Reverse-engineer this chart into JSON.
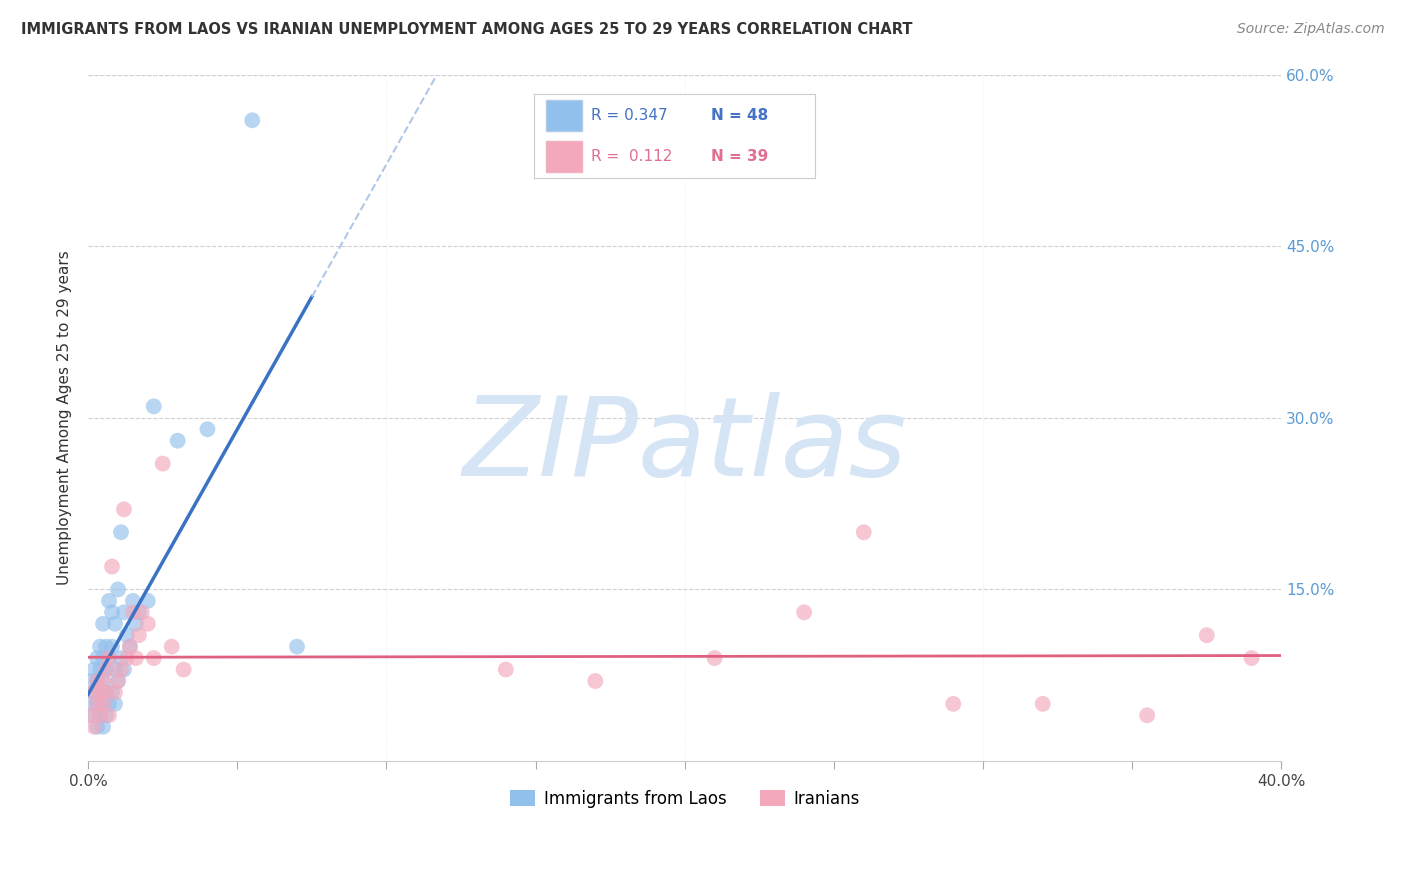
{
  "title": "IMMIGRANTS FROM LAOS VS IRANIAN UNEMPLOYMENT AMONG AGES 25 TO 29 YEARS CORRELATION CHART",
  "source": "Source: ZipAtlas.com",
  "ylabel": "Unemployment Among Ages 25 to 29 years",
  "xlim": [
    0.0,
    0.4
  ],
  "ylim": [
    0.0,
    0.6
  ],
  "xtick_positions": [
    0.0,
    0.05,
    0.1,
    0.15,
    0.2,
    0.25,
    0.3,
    0.35,
    0.4
  ],
  "xtick_labels": [
    "0.0%",
    "",
    "",
    "",
    "",
    "",
    "",
    "",
    "40.0%"
  ],
  "ytick_positions": [
    0.0,
    0.15,
    0.3,
    0.45,
    0.6
  ],
  "ytick_right_labels": [
    "",
    "15.0%",
    "30.0%",
    "45.0%",
    "60.0%"
  ],
  "blue_color": "#92c0ec",
  "pink_color": "#f4a8bc",
  "blue_line_color": "#3a72c4",
  "pink_line_color": "#e06080",
  "dashed_line_color": "#b0c8e8",
  "watermark": "ZIPatlas",
  "watermark_color": "#d5e5f5",
  "blue_scatter_x": [
    0.001,
    0.001,
    0.002,
    0.002,
    0.002,
    0.003,
    0.003,
    0.003,
    0.003,
    0.004,
    0.004,
    0.004,
    0.004,
    0.005,
    0.005,
    0.005,
    0.005,
    0.005,
    0.006,
    0.006,
    0.006,
    0.006,
    0.007,
    0.007,
    0.007,
    0.008,
    0.008,
    0.008,
    0.009,
    0.009,
    0.009,
    0.01,
    0.01,
    0.011,
    0.011,
    0.012,
    0.012,
    0.013,
    0.014,
    0.015,
    0.016,
    0.017,
    0.02,
    0.022,
    0.03,
    0.04,
    0.055,
    0.07
  ],
  "blue_scatter_y": [
    0.05,
    0.07,
    0.04,
    0.06,
    0.08,
    0.03,
    0.05,
    0.07,
    0.09,
    0.04,
    0.06,
    0.08,
    0.1,
    0.03,
    0.05,
    0.07,
    0.09,
    0.12,
    0.04,
    0.06,
    0.08,
    0.1,
    0.05,
    0.09,
    0.14,
    0.06,
    0.1,
    0.13,
    0.05,
    0.08,
    0.12,
    0.07,
    0.15,
    0.09,
    0.2,
    0.08,
    0.13,
    0.11,
    0.1,
    0.14,
    0.12,
    0.13,
    0.14,
    0.31,
    0.28,
    0.29,
    0.56,
    0.1
  ],
  "pink_scatter_x": [
    0.001,
    0.002,
    0.002,
    0.003,
    0.003,
    0.004,
    0.004,
    0.005,
    0.005,
    0.006,
    0.006,
    0.007,
    0.007,
    0.008,
    0.009,
    0.01,
    0.011,
    0.012,
    0.013,
    0.014,
    0.015,
    0.016,
    0.017,
    0.018,
    0.02,
    0.022,
    0.025,
    0.028,
    0.032,
    0.14,
    0.17,
    0.21,
    0.24,
    0.26,
    0.29,
    0.32,
    0.355,
    0.375,
    0.39
  ],
  "pink_scatter_y": [
    0.04,
    0.03,
    0.06,
    0.05,
    0.07,
    0.04,
    0.06,
    0.05,
    0.07,
    0.06,
    0.08,
    0.04,
    0.09,
    0.17,
    0.06,
    0.07,
    0.08,
    0.22,
    0.09,
    0.1,
    0.13,
    0.09,
    0.11,
    0.13,
    0.12,
    0.09,
    0.26,
    0.1,
    0.08,
    0.08,
    0.07,
    0.09,
    0.13,
    0.2,
    0.05,
    0.05,
    0.04,
    0.11,
    0.09
  ],
  "blue_trendline_x0": 0.0,
  "blue_trendline_x_solid_end": 0.075,
  "blue_trendline_x_dash_end": 0.4,
  "pink_trendline_x0": 0.0,
  "pink_trendline_x_end": 0.4,
  "legend_r1": "R = 0.347",
  "legend_n1": "N = 48",
  "legend_r2": "R =  0.112",
  "legend_n2": "N = 39"
}
